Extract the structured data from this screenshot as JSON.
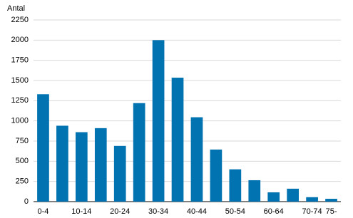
{
  "chart_data": {
    "type": "bar",
    "y_label": "Antal",
    "categories": [
      "0-4",
      null,
      "10-14",
      null,
      "20-24",
      null,
      "30-34",
      null,
      "40-44",
      null,
      "50-54",
      null,
      "60-64",
      null,
      "70-74",
      "75-"
    ],
    "values": [
      1330,
      940,
      860,
      910,
      690,
      1220,
      2000,
      1535,
      1045,
      645,
      400,
      265,
      115,
      160,
      55,
      35
    ],
    "color": "#0073b0",
    "ylim": [
      0,
      2250
    ],
    "yticks": [
      0,
      250,
      500,
      750,
      1000,
      1250,
      1500,
      1750,
      2000,
      2250
    ],
    "grid": true
  }
}
